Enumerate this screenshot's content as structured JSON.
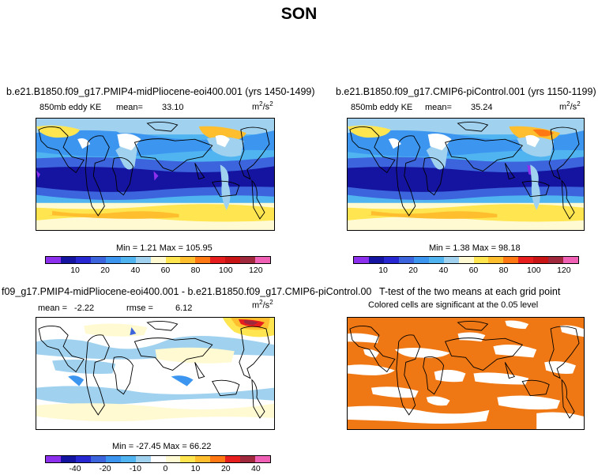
{
  "figure_title": "SON",
  "panels": {
    "p1": {
      "title": "b.e21.B1850.f09_g17.PMIP4-midPliocene-eoi400.001 (yrs 1450-1499)",
      "field": "850mb eddy KE",
      "mean_label": "mean=",
      "mean_value": "33.10",
      "units_base": "m",
      "units_sup1": "2",
      "units_slash": "/s",
      "units_sup2": "2",
      "minmax": "Min =    1.21 Max = 105.95",
      "ticks": [
        "10",
        "20",
        "40",
        "60",
        "80",
        "100",
        "120"
      ]
    },
    "p2": {
      "title": "b.e21.B1850.f09_g17.CMIP6-piControl.001 (yrs 1150-1199)",
      "field": "850mb eddy KE",
      "mean_label": "mean=",
      "mean_value": "35.24",
      "units_base": "m",
      "units_sup1": "2",
      "units_slash": "/s",
      "units_sup2": "2",
      "minmax": "Min =    1.38 Max =  98.18",
      "ticks": [
        "10",
        "20",
        "40",
        "60",
        "80",
        "100",
        "120"
      ]
    },
    "p3": {
      "title": "f09_g17.PMIP4-midPliocene-eoi400.001 - b.e21.B1850.f09_g17.CMIP6-piControl.001",
      "mean_label": "mean =",
      "mean_value": "-2.22",
      "rmse_label": "rmse =",
      "rmse_value": "6.12",
      "units_base": "m",
      "units_sup1": "2",
      "units_slash": "/s",
      "units_sup2": "2",
      "minmax": "Min = -27.45 Max =  66.22",
      "ticks": [
        "-40",
        "-20",
        "-10",
        "0",
        "10",
        "20",
        "40"
      ]
    },
    "p4": {
      "title": "T-test of the two means at each grid point",
      "subtitle": "Colored cells are significant at the 0.05 level"
    }
  },
  "colors": {
    "abs_scale": [
      "#8c30ee",
      "#1414a0",
      "#2828d2",
      "#3c64dc",
      "#3c96f0",
      "#50b4f0",
      "#a0d2f0",
      "#fffad2",
      "#ffe650",
      "#ffbe2d",
      "#ff7814",
      "#e61e1e",
      "#c81414",
      "#a0283c",
      "#f060b4"
    ],
    "diff_scale": [
      "#8c30ee",
      "#1414a0",
      "#2828d2",
      "#3c64dc",
      "#3c96f0",
      "#50b4f0",
      "#a0d2f0",
      "#ffffff",
      "#fffad2",
      "#ffe650",
      "#ffbe2d",
      "#ff7814",
      "#e61e1e",
      "#a0283c",
      "#f060b4"
    ],
    "significant": "#f07814"
  }
}
